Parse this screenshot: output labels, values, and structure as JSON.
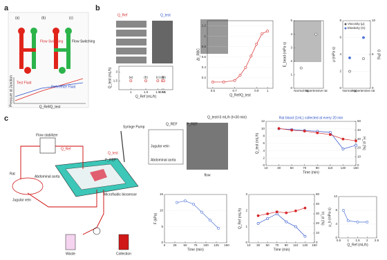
{
  "panel_labels": [
    "a",
    "b",
    "c"
  ],
  "diagram_a": {
    "labels": [
      "Flow Switching",
      "Flow Switching",
      "(a)",
      "(b)",
      "(c)",
      "Test Fluid",
      "Reference Fluid",
      "Pressure at Junction",
      "Q_Ref/Q_test"
    ]
  },
  "diagram_b": {
    "labels": [
      "Q_Ref",
      "Q_test",
      "(a)",
      "(b)",
      "(c)",
      "(d)",
      "(e)"
    ]
  },
  "diagram_c": {
    "labels": [
      "Flow stabilizer",
      "Syringe Pump",
      "Rat",
      "Jugular vein",
      "Abdominal aorta",
      "Microfluidic biosensor",
      "Waste",
      "Collection",
      "Q_Ref",
      "Q_test",
      "P_REF",
      "Q_test=3 mL/h (t<30 min)",
      "Jugular vein",
      "Abdominal aorta",
      "flow",
      "Q_REF",
      "P_REF"
    ]
  },
  "chart_data": [
    {
      "type": "scatter",
      "xlabel": "Q_Ref (mL/h)",
      "ylabel": "Q_test (mL/h)",
      "x": [
        1,
        1.5,
        1.9,
        2.05,
        2.1
      ],
      "values": [
        1.5,
        1.5,
        1.5,
        1.5,
        1.5
      ],
      "color": "#d62728",
      "point_labels": [
        "(a)",
        "(b)",
        "(c)",
        "(d)",
        "(e)"
      ],
      "xlim": [
        0.6,
        2.4
      ],
      "xticks": [
        1,
        1.5,
        1.9,
        2.05,
        2.1
      ],
      "ylim": [
        0,
        4
      ],
      "yticks": [
        1.5,
        3
      ]
    },
    {
      "type": "line",
      "xlabel": "Q_Ref/Q_test",
      "ylabel": "ΔI_RBC",
      "x": [
        0.5,
        0.6,
        0.7,
        0.75,
        0.8,
        0.85,
        0.9,
        0.95,
        1.0
      ],
      "values": [
        0.12,
        0.12,
        0.15,
        0.25,
        0.4,
        0.62,
        0.85,
        1.05,
        1.1
      ],
      "color": "#d62728",
      "xlim": [
        0.45,
        1.05
      ],
      "xticks": [
        0.5,
        0.7,
        0.9,
        1
      ],
      "ylim": [
        0,
        1.3
      ],
      "yticks": [
        0.2,
        0.4,
        0.6,
        0.8,
        1,
        1.2
      ],
      "grid": true
    },
    {
      "type": "scatter",
      "ylabel": "E_bead (mPa·s)",
      "categories": [
        "Normal rat",
        "Hypertensive rat"
      ],
      "values": [
        1.5,
        4
      ],
      "color": "#555555",
      "ylim": [
        0,
        5
      ],
      "yticks": [
        0,
        1,
        2,
        3,
        4,
        5
      ]
    },
    {
      "type": "scatter",
      "ylabel": "μ (mPa·s)",
      "y2label": "G (Pa)",
      "categories": [
        "Normal rat",
        "Hypertensive rat"
      ],
      "series": [
        {
          "name": "Viscosity (μ)",
          "color": "#555555",
          "values": [
            2,
            3.5
          ]
        },
        {
          "name": "Elasticity (G)",
          "color": "#4a6fd6",
          "values": [
            4.5,
            7.5
          ],
          "axis": "y2"
        }
      ],
      "ylim": [
        0,
        8
      ],
      "yticks": [
        0,
        2,
        4,
        6,
        8
      ],
      "y2lim": [
        0,
        10
      ],
      "y2ticks": [
        0,
        5,
        10
      ],
      "legend": "top-left",
      "grid": true
    },
    {
      "type": "line",
      "title": "Rat blood (1mL) collected at every 20 min",
      "xlabel": "Time (min)",
      "ylabel": "Q_test (mL/h)",
      "y2label": "H_ct (%)",
      "x": [
        30,
        50,
        70,
        90,
        110,
        130,
        150
      ],
      "series": [
        {
          "color": "#2a4fc9",
          "values": [
            10,
            9.8,
            9.5,
            9.3,
            9,
            4.5,
            5.5
          ]
        },
        {
          "color": "#d62728",
          "values": [
            42,
            40,
            39,
            37,
            35,
            30,
            28
          ],
          "axis": "y2"
        }
      ],
      "xlim": [
        10,
        150
      ],
      "xticks": [
        10,
        30,
        50,
        70,
        90,
        110,
        130,
        150
      ],
      "ylim": [
        0,
        12
      ],
      "yticks": [
        0,
        2,
        4,
        6,
        8,
        10,
        12
      ],
      "y2lim": [
        0,
        50
      ],
      "y2ticks": [
        0,
        10,
        20,
        30,
        40,
        50
      ],
      "grid": true
    },
    {
      "type": "line",
      "xlabel": "Time (min)",
      "ylabel": "F (kPa)",
      "x": [
        30,
        50,
        70,
        90,
        110,
        130
      ],
      "values": [
        12.5,
        13,
        12,
        9.5,
        7,
        4.5
      ],
      "color": "#4a6fd6",
      "xlim": [
        0,
        150
      ],
      "xticks": [
        0,
        25,
        50,
        75,
        100,
        125,
        150
      ],
      "ylim": [
        0,
        15
      ],
      "yticks": [
        0,
        5,
        10,
        15
      ],
      "grid": true
    },
    {
      "type": "line",
      "xlabel": "Time (min)",
      "ylabel": "Q_Ref (mL/h)",
      "y2label": "H_ct (%)",
      "x": [
        30,
        50,
        70,
        90,
        110,
        130
      ],
      "series": [
        {
          "color": "#2a4fc9",
          "values": [
            1.2,
            1.5,
            1.8,
            1.3,
            1,
            0.4
          ]
        },
        {
          "color": "#d62728",
          "values": [
            28,
            30,
            32,
            31,
            33,
            36
          ],
          "axis": "y2"
        }
      ],
      "xlim": [
        10,
        150
      ],
      "xticks": [
        10,
        30,
        50,
        70,
        90,
        110,
        130,
        150
      ],
      "ylim": [
        0,
        3
      ],
      "yticks": [
        0,
        1,
        2,
        3
      ],
      "y2lim": [
        0,
        50
      ],
      "y2ticks": [
        0,
        10,
        20,
        30,
        40,
        50
      ],
      "grid": true
    },
    {
      "type": "line",
      "xlabel": "Q_Ref (mL/h)",
      "ylabel": "μ_b (mPa·s)",
      "x": [
        0.75,
        1,
        1.5,
        2
      ],
      "values": [
        8,
        5,
        4.6,
        4.6
      ],
      "color": "#4a6fd6",
      "xlim": [
        0.5,
        2.5
      ],
      "xticks": [
        0.5,
        1,
        1.5,
        2,
        2.5
      ],
      "ylim": [
        0,
        12
      ],
      "yticks": [
        0,
        4,
        8,
        12
      ],
      "grid": true
    }
  ]
}
